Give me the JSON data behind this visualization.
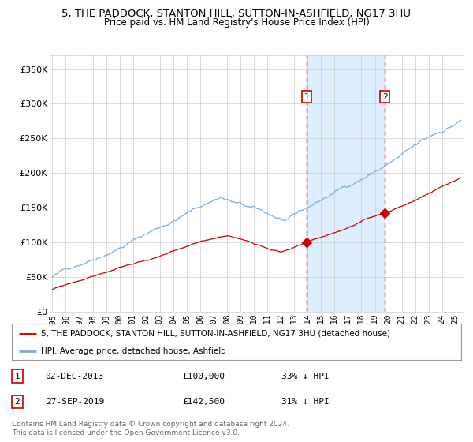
{
  "title": "5, THE PADDOCK, STANTON HILL, SUTTON-IN-ASHFIELD, NG17 3HU",
  "subtitle": "Price paid vs. HM Land Registry's House Price Index (HPI)",
  "ylabel_ticks": [
    "£0",
    "£50K",
    "£100K",
    "£150K",
    "£200K",
    "£250K",
    "£300K",
    "£350K"
  ],
  "ytick_values": [
    0,
    50000,
    100000,
    150000,
    200000,
    250000,
    300000,
    350000
  ],
  "ylim": [
    0,
    370000
  ],
  "xlim_start": 1994.8,
  "xlim_end": 2025.6,
  "hpi_color": "#7aaed6",
  "price_color": "#cc0000",
  "marker_color": "#cc0000",
  "vline_color": "#cc0000",
  "shade_color": "#ddeeff",
  "grid_color": "#cccccc",
  "bg_color": "#ffffff",
  "legend_label_red": "5, THE PADDOCK, STANTON HILL, SUTTON-IN-ASHFIELD, NG17 3HU (detached house)",
  "legend_label_blue": "HPI: Average price, detached house, Ashfield",
  "sale1_date": 2013.917,
  "sale1_price": 100000,
  "sale2_date": 2019.75,
  "sale2_price": 142500,
  "annotation1": "02-DEC-2013",
  "annotation1_price": "£100,000",
  "annotation1_hpi": "33% ↓ HPI",
  "annotation2": "27-SEP-2019",
  "annotation2_price": "£142,500",
  "annotation2_hpi": "31% ↓ HPI",
  "copyright": "Contains HM Land Registry data © Crown copyright and database right 2024.\nThis data is licensed under the Open Government Licence v3.0.",
  "xtick_years": [
    1995,
    1996,
    1997,
    1998,
    1999,
    2000,
    2001,
    2002,
    2003,
    2004,
    2005,
    2006,
    2007,
    2008,
    2009,
    2010,
    2011,
    2012,
    2013,
    2014,
    2015,
    2016,
    2017,
    2018,
    2019,
    2020,
    2021,
    2022,
    2023,
    2024,
    2025
  ]
}
